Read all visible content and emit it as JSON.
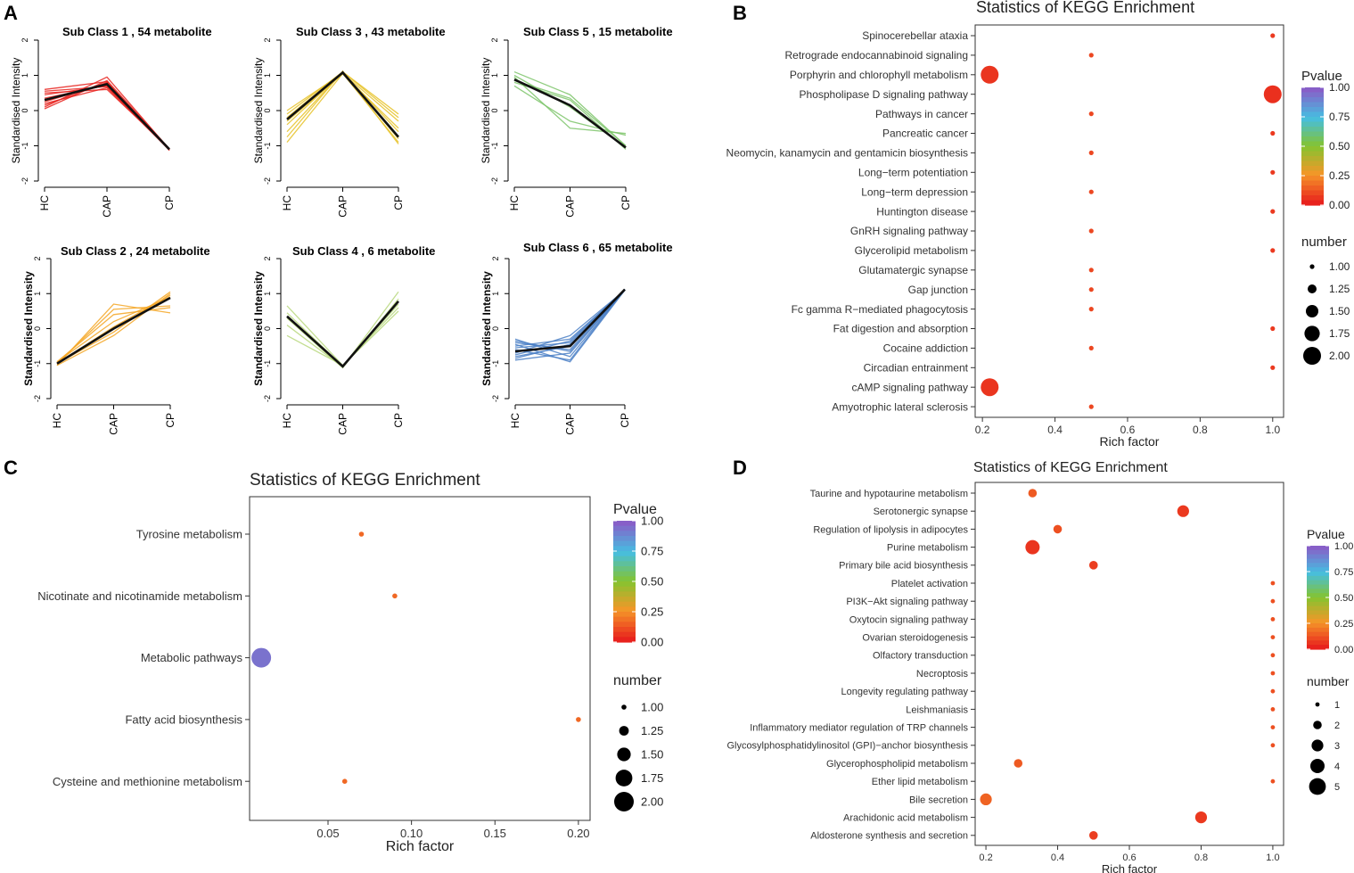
{
  "panel_labels": {
    "a": "A",
    "b": "B",
    "c": "C",
    "d": "D"
  },
  "colors": {
    "red": "#e8221d",
    "yellow": "#e6c228",
    "green": "#7cc46a",
    "orange": "#f5a623",
    "lightgreen": "#b8d87e",
    "blue": "#4a7fc6",
    "black": "#111111",
    "purple": "#7b5cab"
  },
  "chart_data": [
    {
      "type": "line",
      "panel": "A",
      "title": "Sub Class  1  , 54 metabolite",
      "ylabel": "Standardised Intensity",
      "categories": [
        "HC",
        "CAP",
        "CP"
      ],
      "yticks": [
        "2",
        "1",
        "0",
        "-1",
        "-2"
      ],
      "ylim": [
        -2,
        2
      ],
      "mean": [
        0.3,
        0.75,
        -1.1
      ],
      "color_key": "red",
      "members": [
        [
          0.05,
          0.85,
          -1.08
        ],
        [
          0.15,
          0.8,
          -1.1
        ],
        [
          0.25,
          0.78,
          -1.12
        ],
        [
          0.35,
          0.72,
          -1.1
        ],
        [
          0.45,
          0.7,
          -1.09
        ],
        [
          0.55,
          0.68,
          -1.11
        ],
        [
          0.6,
          0.82,
          -1.13
        ],
        [
          0.1,
          0.95,
          -1.1
        ],
        [
          0.5,
          0.6,
          -1.08
        ],
        [
          0.2,
          0.65,
          -1.12
        ]
      ]
    },
    {
      "type": "line",
      "panel": "A",
      "title": "Sub Class  3  , 43 metabolite",
      "ylabel": "Standardised Intensity",
      "categories": [
        "HC",
        "CAP",
        "CP"
      ],
      "yticks": [
        "2",
        "1",
        "0",
        "-1",
        "-2"
      ],
      "ylim": [
        -2,
        2
      ],
      "mean": [
        -0.25,
        1.08,
        -0.75
      ],
      "color_key": "yellow",
      "members": [
        [
          -0.9,
          1.05,
          -0.9
        ],
        [
          -0.6,
          1.1,
          -0.8
        ],
        [
          -0.4,
          1.08,
          -0.6
        ],
        [
          -0.2,
          1.1,
          -0.1
        ],
        [
          0.0,
          1.06,
          -0.3
        ],
        [
          -0.75,
          1.12,
          -0.95
        ],
        [
          -0.3,
          1.04,
          -0.5
        ],
        [
          -0.1,
          1.1,
          -0.2
        ]
      ]
    },
    {
      "type": "line",
      "panel": "A",
      "title": "Sub Class  5  , 15 metabolite",
      "ylabel": "Standardised Intensity",
      "categories": [
        "HC",
        "CAP",
        "CP"
      ],
      "yticks": [
        "2",
        "1",
        "0",
        "-1",
        "-2"
      ],
      "ylim": [
        -2,
        2
      ],
      "mean": [
        0.88,
        0.15,
        -1.05
      ],
      "color_key": "green",
      "members": [
        [
          1.1,
          0.45,
          -1.0
        ],
        [
          0.95,
          -0.5,
          -0.65
        ],
        [
          0.8,
          0.3,
          -1.1
        ],
        [
          0.7,
          -0.3,
          -0.7
        ],
        [
          1.0,
          0.1,
          -1.05
        ],
        [
          0.85,
          0.35,
          -1.0
        ]
      ]
    },
    {
      "type": "line",
      "panel": "A",
      "title": "Sub Class  2  , 24 metabolite",
      "ylabel": "Standardised Intensity",
      "categories": [
        "HC",
        "CAP",
        "CP"
      ],
      "yticks": [
        "2",
        "1",
        "0",
        "-1",
        "-2"
      ],
      "ylim": [
        -2,
        2
      ],
      "mean": [
        -1.0,
        0.0,
        0.88
      ],
      "color_key": "orange",
      "members": [
        [
          -1.05,
          0.7,
          0.45
        ],
        [
          -1.0,
          0.55,
          0.65
        ],
        [
          -0.95,
          0.2,
          0.9
        ],
        [
          -1.0,
          -0.1,
          1.05
        ],
        [
          -1.05,
          -0.2,
          1.0
        ],
        [
          -0.95,
          0.4,
          0.6
        ],
        [
          -1.0,
          0.05,
          0.95
        ]
      ]
    },
    {
      "type": "line",
      "panel": "A",
      "title": "Sub Class  4  , 6 metabolite",
      "ylabel": "Standardised Intensity",
      "categories": [
        "HC",
        "CAP",
        "CP"
      ],
      "yticks": [
        "2",
        "1",
        "0",
        "-1",
        "-2"
      ],
      "ylim": [
        -2,
        2
      ],
      "mean": [
        0.35,
        -1.08,
        0.78
      ],
      "color_key": "lightgreen",
      "members": [
        [
          0.65,
          -1.05,
          0.5
        ],
        [
          0.1,
          -1.1,
          1.05
        ],
        [
          0.45,
          -1.08,
          0.7
        ],
        [
          0.3,
          -1.12,
          0.85
        ],
        [
          -0.2,
          -1.05,
          0.6
        ]
      ]
    },
    {
      "type": "line",
      "panel": "A",
      "title": "Sub Class  6  , 65 metabolite",
      "ylabel": "Standardised Intensity",
      "categories": [
        "HC",
        "CAP",
        "CP"
      ],
      "yticks": [
        "2",
        "1",
        "0",
        "-1",
        "-2"
      ],
      "ylim": [
        -2,
        2
      ],
      "mean": [
        -0.65,
        -0.5,
        1.12
      ],
      "color_key": "blue",
      "members": [
        [
          -0.3,
          -0.8,
          1.1
        ],
        [
          -0.4,
          -0.6,
          1.12
        ],
        [
          -0.5,
          -0.3,
          1.1
        ],
        [
          -0.6,
          -0.9,
          1.12
        ],
        [
          -0.7,
          -0.2,
          1.1
        ],
        [
          -0.8,
          -0.5,
          1.12
        ],
        [
          -0.9,
          -0.7,
          1.1
        ],
        [
          -0.55,
          -0.4,
          1.12
        ],
        [
          -0.45,
          -0.95,
          1.1
        ],
        [
          -0.75,
          -0.35,
          1.12
        ],
        [
          -0.35,
          -0.65,
          1.1
        ],
        [
          -0.85,
          -0.45,
          1.11
        ]
      ]
    },
    {
      "type": "scatter",
      "panel": "B",
      "title": "Statistics of KEGG Enrichment",
      "xlabel": "Rich factor",
      "xlim": [
        0.18,
        1.03
      ],
      "xticks": [
        0.2,
        0.4,
        0.6,
        0.8,
        1.0
      ],
      "xticklabels": [
        "0.2",
        "0.4",
        "0.6",
        "0.8",
        "1.0"
      ],
      "legend_pvalue_title": "Pvalue",
      "legend_pvalue_ticks": [
        "1.00",
        "0.75",
        "0.50",
        "0.25",
        "0.00"
      ],
      "legend_number_title": "number",
      "legend_number_ticks": [
        "1.00",
        "1.25",
        "1.50",
        "1.75",
        "2.00"
      ],
      "categories": [
        "Spinocerebellar ataxia",
        "Retrograde endocannabinoid signaling",
        "Porphyrin and chlorophyll metabolism",
        "Phospholipase D signaling pathway",
        "Pathways in cancer",
        "Pancreatic cancer",
        "Neomycin, kanamycin and gentamicin biosynthesis",
        "Long−term potentiation",
        "Long−term depression",
        "Huntington disease",
        "GnRH signaling pathway",
        "Glycerolipid metabolism",
        "Glutamatergic synapse",
        "Gap junction",
        "Fc gamma R−mediated phagocytosis",
        "Fat digestion and absorption",
        "Cocaine addiction",
        "Circadian entrainment",
        "cAMP signaling pathway",
        "Amyotrophic lateral sclerosis"
      ],
      "x": [
        1.0,
        0.5,
        0.22,
        1.0,
        0.5,
        1.0,
        0.5,
        1.0,
        0.5,
        1.0,
        0.5,
        1.0,
        0.5,
        0.5,
        0.5,
        1.0,
        0.5,
        1.0,
        0.22,
        0.5
      ],
      "number": [
        1,
        1,
        2,
        2,
        1,
        1,
        1,
        1,
        1,
        1,
        1,
        1,
        1,
        1,
        1,
        1,
        1,
        1,
        2,
        1
      ],
      "pvalue": [
        0.05,
        0.08,
        0.04,
        0.03,
        0.08,
        0.05,
        0.08,
        0.05,
        0.08,
        0.05,
        0.08,
        0.05,
        0.08,
        0.08,
        0.08,
        0.05,
        0.08,
        0.05,
        0.04,
        0.08
      ]
    },
    {
      "type": "scatter",
      "panel": "C",
      "title": "Statistics of KEGG Enrichment",
      "xlabel": "Rich factor",
      "xlim": [
        0.003,
        0.207
      ],
      "xticks": [
        0.05,
        0.1,
        0.15,
        0.2
      ],
      "xticklabels": [
        "0.05",
        "0.10",
        "0.15",
        "0.20"
      ],
      "legend_pvalue_title": "Pvalue",
      "legend_pvalue_ticks": [
        "1.00",
        "0.75",
        "0.50",
        "0.25",
        "0.00"
      ],
      "legend_number_title": "number",
      "legend_number_ticks": [
        "1.00",
        "1.25",
        "1.50",
        "1.75",
        "2.00"
      ],
      "categories": [
        "Tyrosine metabolism",
        "Nicotinate and nicotinamide metabolism",
        "Metabolic pathways",
        "Fatty acid biosynthesis",
        "Cysteine and methionine metabolism"
      ],
      "x": [
        0.07,
        0.09,
        0.01,
        0.2,
        0.06
      ],
      "number": [
        1,
        1,
        2,
        1,
        1
      ],
      "pvalue": [
        0.15,
        0.15,
        0.95,
        0.15,
        0.15
      ]
    },
    {
      "type": "scatter",
      "panel": "D",
      "title": "Statistics of KEGG Enrichment",
      "xlabel": "Rich factor",
      "xlim": [
        0.17,
        1.03
      ],
      "xticks": [
        0.2,
        0.4,
        0.6,
        0.8,
        1.0
      ],
      "xticklabels": [
        "0.2",
        "0.4",
        "0.6",
        "0.8",
        "1.0"
      ],
      "legend_pvalue_title": "Pvalue",
      "legend_pvalue_ticks": [
        "1.00",
        "0.75",
        "0.50",
        "0.25",
        "0.00"
      ],
      "legend_number_title": "number",
      "legend_number_ticks": [
        "1",
        "2",
        "3",
        "4",
        "5"
      ],
      "categories": [
        "Taurine and hypotaurine metabolism",
        "Serotonergic synapse",
        "Regulation of lipolysis in adipocytes",
        "Purine metabolism",
        "Primary bile acid biosynthesis",
        "Platelet activation",
        "PI3K−Akt signaling pathway",
        "Oxytocin signaling pathway",
        "Ovarian steroidogenesis",
        "Olfactory transduction",
        "Necroptosis",
        "Longevity regulating pathway",
        "Leishmaniasis",
        "Inflammatory mediator regulation of TRP channels",
        "Glycosylphosphatidylinositol (GPI)−anchor biosynthesis",
        "Glycerophospholipid metabolism",
        "Ether lipid metabolism",
        "Bile secretion",
        "Arachidonic acid metabolism",
        "Aldosterone synthesis and secretion"
      ],
      "x": [
        0.33,
        0.75,
        0.4,
        0.33,
        0.5,
        1.0,
        1.0,
        1.0,
        1.0,
        1.0,
        1.0,
        1.0,
        1.0,
        1.0,
        1.0,
        0.29,
        1.0,
        0.2,
        0.8,
        0.5
      ],
      "number": [
        2,
        3,
        2,
        4,
        2,
        1,
        1,
        1,
        1,
        1,
        1,
        1,
        1,
        1,
        1,
        2,
        1,
        3,
        3,
        2
      ],
      "pvalue": [
        0.12,
        0.05,
        0.1,
        0.04,
        0.06,
        0.1,
        0.1,
        0.1,
        0.1,
        0.1,
        0.1,
        0.1,
        0.1,
        0.1,
        0.1,
        0.12,
        0.1,
        0.14,
        0.05,
        0.06
      ]
    }
  ]
}
